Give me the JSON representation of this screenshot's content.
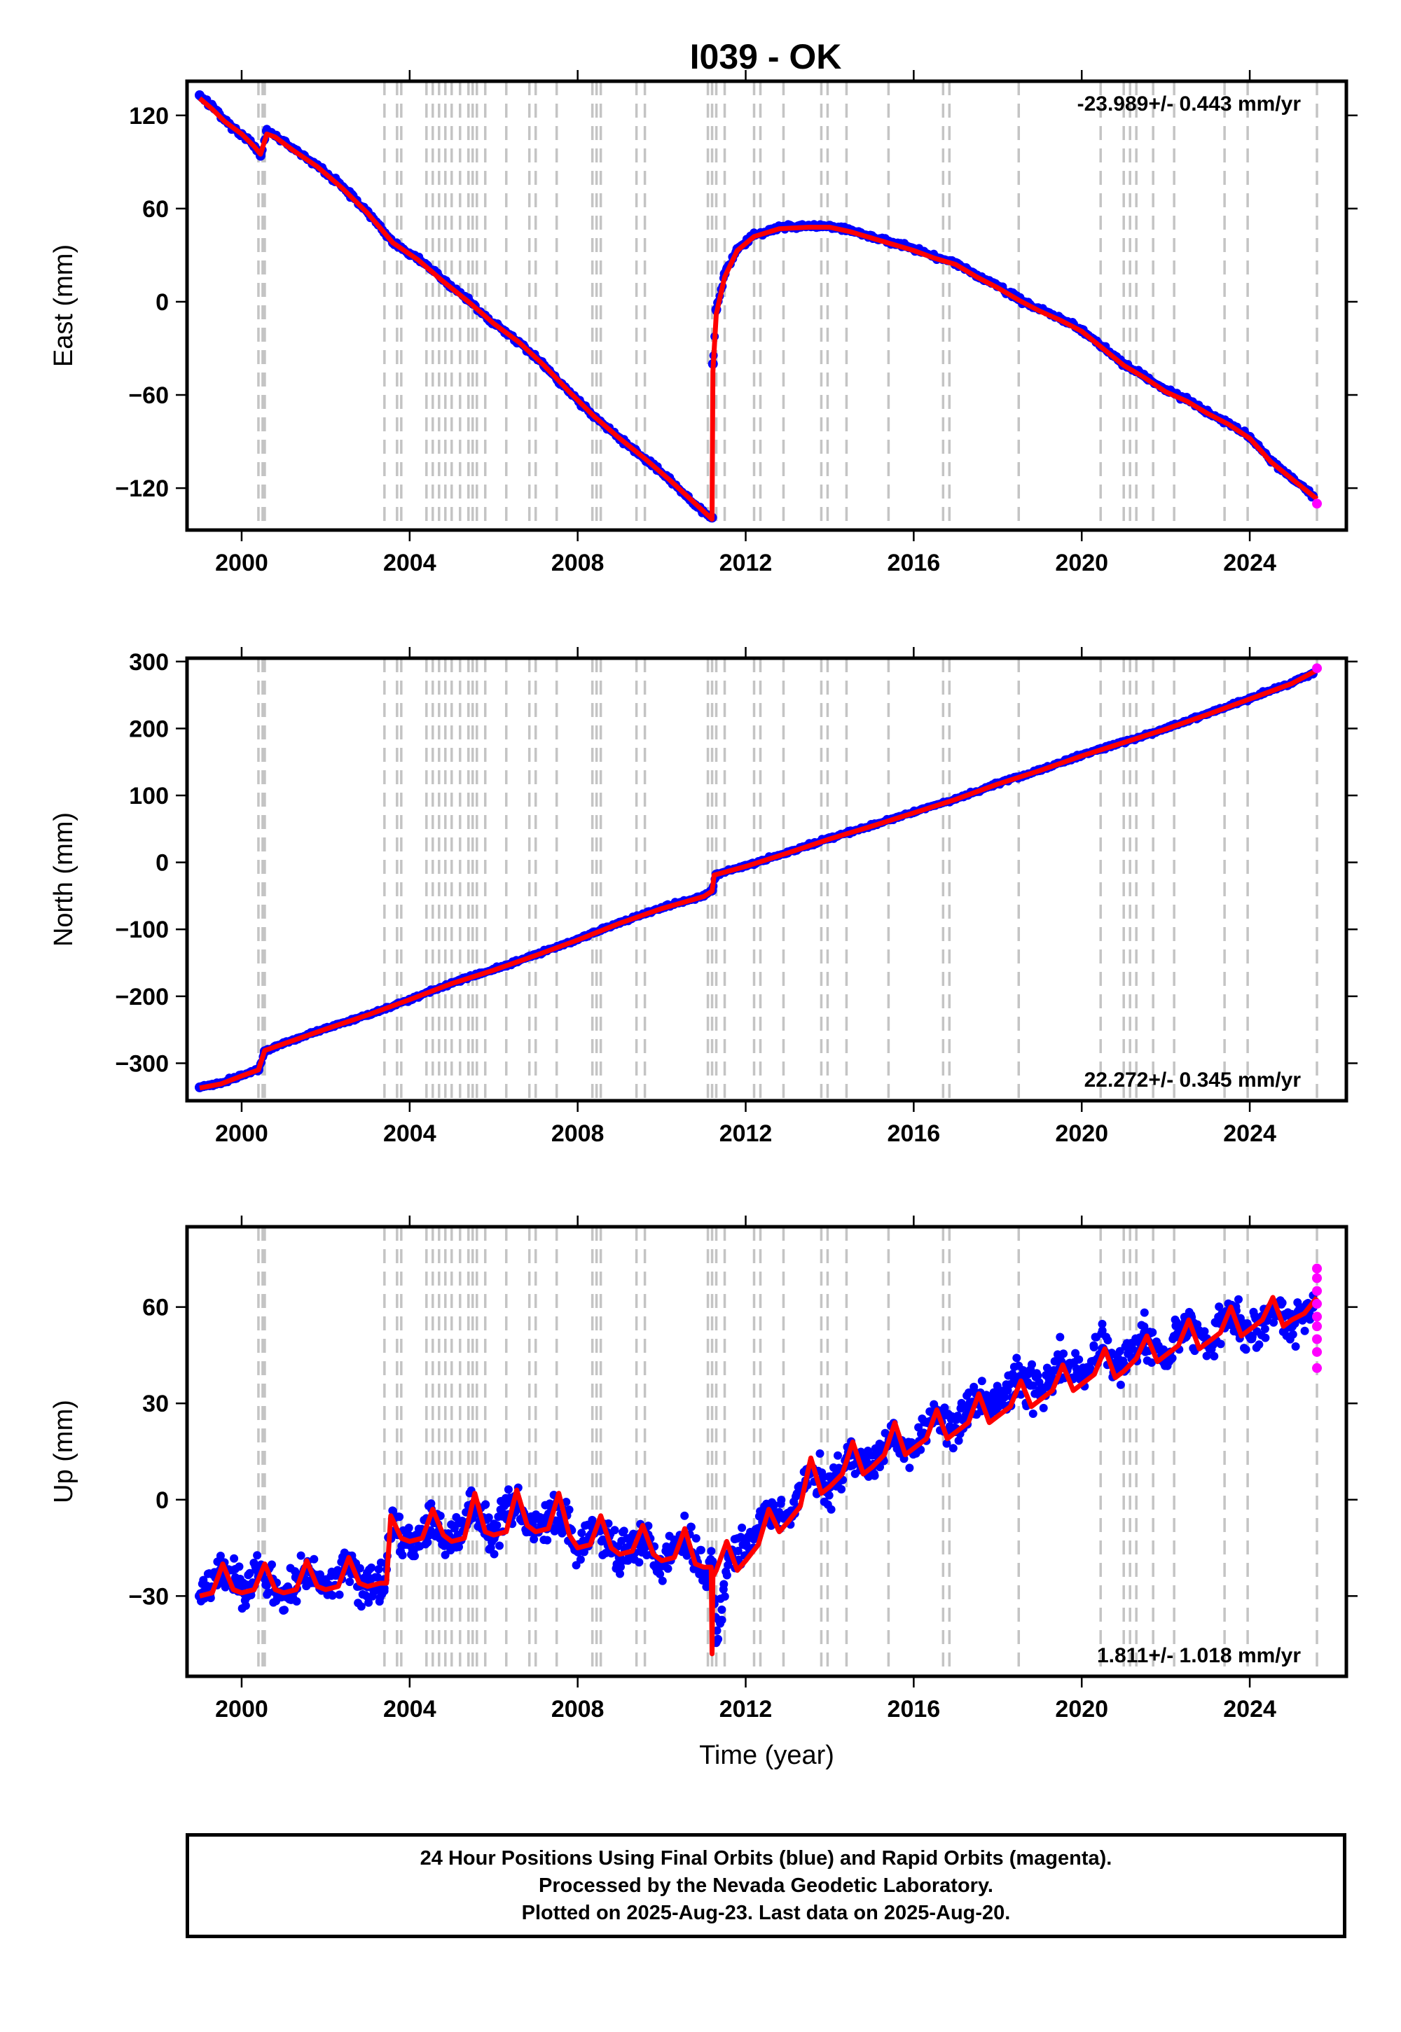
{
  "colors": {
    "final_points": "#0000ff",
    "rapid_points": "#ff00ff",
    "model_fit": "#ff0000",
    "event_lines": "#c4c4c4",
    "frame": "#000000"
  },
  "caption": {
    "line1": "24 Hour Positions Using Final Orbits (blue) and Rapid Orbits (magenta).",
    "line2": "Processed by the Nevada Geodetic Laboratory.",
    "line3": "Plotted on 2025-Aug-23. Last data on 2025-Aug-20."
  },
  "chart_data": [
    {
      "type": "scatter",
      "title": "I039 - OK",
      "xlabel": "",
      "ylabel": "East (mm)",
      "xlim": [
        1998.7,
        2026.3
      ],
      "ylim": [
        -147,
        142
      ],
      "xticks": [
        2000,
        2004,
        2008,
        2012,
        2016,
        2020,
        2024
      ],
      "yticks": [
        -120,
        -60,
        0,
        60,
        120
      ],
      "grid": false,
      "rate_annotation": "-23.989+/- 0.443 mm/yr",
      "annotation_position": "top-right",
      "event_lines_x": [
        2000.4,
        2000.5,
        2000.55,
        2003.4,
        2003.7,
        2003.8,
        2004.4,
        2004.55,
        2004.7,
        2004.85,
        2005.0,
        2005.2,
        2005.4,
        2005.5,
        2005.6,
        2005.8,
        2006.3,
        2006.85,
        2007.0,
        2007.5,
        2008.35,
        2008.45,
        2008.55,
        2009.4,
        2009.6,
        2011.1,
        2011.2,
        2011.3,
        2011.5,
        2012.2,
        2012.35,
        2012.9,
        2013.8,
        2013.95,
        2014.4,
        2015.4,
        2016.7,
        2016.85,
        2018.5,
        2020.45,
        2021.0,
        2021.15,
        2021.3,
        2021.7,
        2022.2,
        2023.4,
        2023.95,
        2025.6
      ],
      "series": [
        {
          "name": "Final Orbits (blue)",
          "x": [
            1999.0,
            1999.3,
            1999.6,
            2000.0,
            2000.3,
            2000.45,
            2000.6,
            2000.8,
            2001.2,
            2001.8,
            2002.4,
            2003.0,
            2003.6,
            2004.2,
            2004.8,
            2005.4,
            2006.0,
            2006.6,
            2007.2,
            2007.8,
            2008.4,
            2009.0,
            2009.6,
            2010.2,
            2010.8,
            2011.2,
            2011.22,
            2011.3,
            2011.5,
            2011.8,
            2012.2,
            2012.8,
            2013.5,
            2014.0,
            2014.5,
            2015.0,
            2015.5,
            2016.0,
            2016.5,
            2017.0,
            2017.5,
            2018.0,
            2018.5,
            2019.0,
            2019.5,
            2020.0,
            2020.5,
            2021.0,
            2021.5,
            2022.0,
            2022.5,
            2023.0,
            2023.5,
            2024.0,
            2024.5,
            2025.0,
            2025.5
          ],
          "y": [
            133,
            126,
            117,
            108,
            100,
            94,
            110,
            107,
            99,
            88,
            74,
            58,
            38,
            28,
            14,
            1,
            -14,
            -26,
            -41,
            -58,
            -74,
            -88,
            -101,
            -115,
            -131,
            -139,
            -40,
            -5,
            18,
            34,
            43,
            48,
            49,
            49,
            46,
            42,
            38,
            34,
            29,
            25,
            17,
            10,
            2,
            -5,
            -11,
            -18,
            -29,
            -40,
            -48,
            -57,
            -63,
            -71,
            -78,
            -87,
            -102,
            -113,
            -125
          ]
        },
        {
          "name": "Rapid Orbits (magenta)",
          "x": [
            2025.6
          ],
          "y": [
            -130
          ]
        },
        {
          "name": "model",
          "x": [
            1999.0,
            1999.3,
            1999.6,
            2000.0,
            2000.3,
            2000.45,
            2000.6,
            2000.8,
            2001.2,
            2001.8,
            2002.4,
            2003.0,
            2003.6,
            2004.2,
            2004.8,
            2005.4,
            2006.0,
            2006.6,
            2007.2,
            2007.8,
            2008.4,
            2009.0,
            2009.6,
            2010.2,
            2010.8,
            2011.2,
            2011.2,
            2011.22,
            2011.3,
            2011.5,
            2011.8,
            2012.2,
            2012.8,
            2013.5,
            2014.0,
            2014.5,
            2015.0,
            2015.5,
            2016.0,
            2016.5,
            2017.0,
            2017.5,
            2018.0,
            2018.5,
            2019.0,
            2019.5,
            2020.0,
            2020.5,
            2021.0,
            2021.5,
            2022.0,
            2022.5,
            2023.0,
            2023.5,
            2024.0,
            2024.5,
            2025.0,
            2025.6
          ],
          "y": [
            131,
            124,
            116,
            108,
            100,
            95,
            108,
            106,
            98,
            87,
            73,
            57,
            38,
            27,
            13,
            0,
            -14,
            -26,
            -41,
            -58,
            -74,
            -88,
            -101,
            -115,
            -130,
            -140,
            -140,
            -45,
            -8,
            16,
            33,
            42,
            47,
            48,
            48,
            45,
            41,
            37,
            33,
            28,
            24,
            16,
            9,
            1,
            -6,
            -12,
            -19,
            -30,
            -41,
            -49,
            -58,
            -64,
            -72,
            -79,
            -88,
            -103,
            -114,
            -127
          ]
        }
      ]
    },
    {
      "type": "scatter",
      "title": "",
      "xlabel": "",
      "ylabel": "North (mm)",
      "xlim": [
        1998.7,
        2026.3
      ],
      "ylim": [
        -356,
        305
      ],
      "xticks": [
        2000,
        2004,
        2008,
        2012,
        2016,
        2020,
        2024
      ],
      "yticks": [
        -300,
        -200,
        -100,
        0,
        100,
        200,
        300
      ],
      "grid": false,
      "rate_annotation": "22.272+/- 0.345 mm/yr",
      "annotation_position": "bottom-right",
      "event_lines_x": [
        2000.4,
        2000.5,
        2000.55,
        2003.4,
        2003.7,
        2003.8,
        2004.4,
        2004.55,
        2004.7,
        2004.85,
        2005.0,
        2005.2,
        2005.4,
        2005.5,
        2005.6,
        2005.8,
        2006.3,
        2006.85,
        2007.0,
        2007.5,
        2008.35,
        2008.45,
        2008.55,
        2009.4,
        2009.6,
        2011.1,
        2011.2,
        2011.3,
        2011.5,
        2012.2,
        2012.35,
        2012.9,
        2013.8,
        2013.95,
        2014.4,
        2015.4,
        2016.7,
        2016.85,
        2018.5,
        2020.45,
        2021.0,
        2021.15,
        2021.3,
        2021.7,
        2022.2,
        2023.4,
        2023.95,
        2025.6
      ],
      "series": [
        {
          "name": "Final Orbits (blue)",
          "x": [
            1999.0,
            1999.5,
            2000.0,
            2000.4,
            2000.55,
            2001.0,
            2002.0,
            2003.0,
            2004.0,
            2005.0,
            2006.0,
            2007.0,
            2008.0,
            2009.0,
            2010.0,
            2011.0,
            2011.2,
            2011.3,
            2012.0,
            2013.0,
            2014.0,
            2015.0,
            2016.0,
            2017.0,
            2018.0,
            2019.0,
            2020.0,
            2021.0,
            2022.0,
            2023.0,
            2024.0,
            2025.0,
            2025.5
          ],
          "y": [
            -336,
            -330,
            -318,
            -310,
            -282,
            -270,
            -248,
            -228,
            -205,
            -180,
            -160,
            -138,
            -115,
            -90,
            -68,
            -50,
            -42,
            -18,
            -5,
            15,
            36,
            55,
            75,
            95,
            118,
            138,
            160,
            180,
            200,
            222,
            245,
            268,
            282
          ]
        },
        {
          "name": "Rapid Orbits (magenta)",
          "x": [
            2025.6
          ],
          "y": [
            290
          ]
        },
        {
          "name": "model",
          "x": [
            1999.0,
            1999.5,
            2000.0,
            2000.4,
            2000.55,
            2001.0,
            2002.0,
            2003.0,
            2004.0,
            2005.0,
            2006.0,
            2007.0,
            2008.0,
            2009.0,
            2010.0,
            2011.0,
            2011.2,
            2011.25,
            2012.0,
            2013.0,
            2014.0,
            2015.0,
            2016.0,
            2017.0,
            2018.0,
            2019.0,
            2020.0,
            2021.0,
            2022.0,
            2023.0,
            2024.0,
            2025.0,
            2025.6
          ],
          "y": [
            -337,
            -331,
            -319,
            -310,
            -281,
            -271,
            -249,
            -228,
            -205,
            -181,
            -161,
            -139,
            -116,
            -91,
            -69,
            -51,
            -43,
            -19,
            -6,
            14,
            35,
            54,
            74,
            94,
            117,
            137,
            159,
            179,
            199,
            221,
            244,
            267,
            287
          ]
        }
      ]
    },
    {
      "type": "scatter",
      "title": "",
      "xlabel": "Time (year)",
      "ylabel": "Up (mm)",
      "xlim": [
        1998.7,
        2026.3
      ],
      "ylim": [
        -55,
        85
      ],
      "xticks": [
        2000,
        2004,
        2008,
        2012,
        2016,
        2020,
        2024
      ],
      "yticks": [
        -30,
        0,
        30,
        60
      ],
      "grid": false,
      "rate_annotation": "1.811+/- 1.018 mm/yr",
      "annotation_position": "bottom-right",
      "event_lines_x": [
        2000.4,
        2000.5,
        2000.55,
        2003.4,
        2003.7,
        2003.8,
        2004.4,
        2004.55,
        2004.7,
        2004.85,
        2005.0,
        2005.2,
        2005.4,
        2005.5,
        2005.6,
        2005.8,
        2006.3,
        2006.85,
        2007.0,
        2007.5,
        2008.35,
        2008.45,
        2008.55,
        2009.4,
        2009.6,
        2011.1,
        2011.2,
        2011.3,
        2011.5,
        2012.2,
        2012.35,
        2012.9,
        2013.8,
        2013.95,
        2014.4,
        2015.4,
        2016.7,
        2016.85,
        2018.5,
        2020.45,
        2021.0,
        2021.15,
        2021.3,
        2021.7,
        2022.2,
        2023.4,
        2023.95,
        2025.6
      ],
      "series": [
        {
          "name": "Final Orbits (blue)",
          "x": [
            1999.0,
            1999.5,
            2000.0,
            2000.5,
            2001.0,
            2001.5,
            2002.0,
            2002.5,
            2003.0,
            2003.4,
            2003.6,
            2004.0,
            2004.5,
            2005.0,
            2005.5,
            2006.0,
            2006.5,
            2007.0,
            2007.5,
            2008.0,
            2008.5,
            2009.0,
            2009.5,
            2010.0,
            2010.5,
            2011.0,
            2011.2,
            2011.3,
            2011.6,
            2012.0,
            2012.5,
            2013.0,
            2013.5,
            2014.0,
            2014.5,
            2015.0,
            2015.5,
            2016.0,
            2016.5,
            2017.0,
            2017.5,
            2018.0,
            2018.5,
            2019.0,
            2019.5,
            2020.0,
            2020.5,
            2021.0,
            2021.5,
            2022.0,
            2022.5,
            2023.0,
            2023.5,
            2024.0,
            2024.5,
            2025.0,
            2025.5
          ],
          "y": [
            -30,
            -22,
            -28,
            -22,
            -30,
            -22,
            -28,
            -20,
            -27,
            -25,
            -6,
            -14,
            -6,
            -14,
            -2,
            -12,
            0,
            -10,
            -2,
            -16,
            -9,
            -18,
            -12,
            -20,
            -12,
            -22,
            -21,
            -44,
            -18,
            -14,
            -4,
            -6,
            8,
            4,
            14,
            10,
            20,
            16,
            27,
            22,
            33,
            29,
            38,
            34,
            43,
            38,
            47,
            42,
            52,
            45,
            55,
            49,
            57,
            51,
            60,
            54,
            60
          ]
        },
        {
          "name": "Rapid Orbits (magenta)",
          "x": [
            2025.6,
            2025.6,
            2025.6,
            2025.6,
            2025.6,
            2025.6,
            2025.6,
            2025.6,
            2025.6
          ],
          "y": [
            72,
            69,
            65,
            61,
            57,
            54,
            50,
            46,
            41
          ]
        },
        {
          "name": "model",
          "x": [
            1999.0,
            1999.3,
            1999.55,
            1999.8,
            2000.0,
            2000.3,
            2000.55,
            2000.8,
            2001.0,
            2001.3,
            2001.55,
            2001.8,
            2002.0,
            2002.3,
            2002.55,
            2002.8,
            2003.0,
            2003.3,
            2003.45,
            2003.55,
            2003.8,
            2004.0,
            2004.3,
            2004.55,
            2004.8,
            2005.0,
            2005.3,
            2005.55,
            2005.8,
            2006.0,
            2006.3,
            2006.55,
            2006.8,
            2007.0,
            2007.3,
            2007.55,
            2007.8,
            2008.0,
            2008.3,
            2008.55,
            2008.8,
            2009.0,
            2009.3,
            2009.55,
            2009.8,
            2010.0,
            2010.3,
            2010.55,
            2010.8,
            2011.0,
            2011.18,
            2011.2,
            2011.22,
            2011.3,
            2011.55,
            2011.8,
            2012.0,
            2012.3,
            2012.55,
            2012.8,
            2013.0,
            2013.3,
            2013.55,
            2013.8,
            2014.0,
            2014.3,
            2014.55,
            2014.8,
            2015.0,
            2015.3,
            2015.55,
            2015.8,
            2016.0,
            2016.3,
            2016.55,
            2016.8,
            2017.0,
            2017.3,
            2017.55,
            2017.8,
            2018.0,
            2018.3,
            2018.55,
            2018.8,
            2019.0,
            2019.3,
            2019.55,
            2019.8,
            2020.0,
            2020.3,
            2020.55,
            2020.8,
            2021.0,
            2021.3,
            2021.55,
            2021.8,
            2022.0,
            2022.3,
            2022.55,
            2022.8,
            2023.0,
            2023.3,
            2023.55,
            2023.8,
            2024.0,
            2024.3,
            2024.55,
            2024.8,
            2025.0,
            2025.3,
            2025.6
          ],
          "y": [
            -30,
            -29,
            -20,
            -28,
            -29,
            -28,
            -20,
            -28,
            -29,
            -28,
            -19,
            -27,
            -28,
            -27,
            -18,
            -26,
            -27,
            -26,
            -26,
            -5,
            -12,
            -13,
            -12,
            -3,
            -11,
            -13,
            -12,
            2,
            -10,
            -11,
            -10,
            3,
            -8,
            -10,
            -9,
            2,
            -11,
            -15,
            -14,
            -5,
            -15,
            -17,
            -16,
            -8,
            -17,
            -19,
            -18,
            -9,
            -20,
            -21,
            -21,
            -48,
            -24,
            -22,
            -13,
            -22,
            -19,
            -14,
            -3,
            -10,
            -7,
            -2,
            13,
            2,
            4,
            8,
            18,
            8,
            10,
            14,
            24,
            14,
            16,
            19,
            28,
            19,
            21,
            24,
            33,
            24,
            26,
            29,
            37,
            29,
            31,
            34,
            42,
            34,
            36,
            39,
            47,
            38,
            40,
            44,
            51,
            43,
            45,
            48,
            56,
            47,
            49,
            52,
            60,
            51,
            53,
            56,
            63,
            54,
            56,
            58,
            63
          ]
        }
      ]
    }
  ]
}
